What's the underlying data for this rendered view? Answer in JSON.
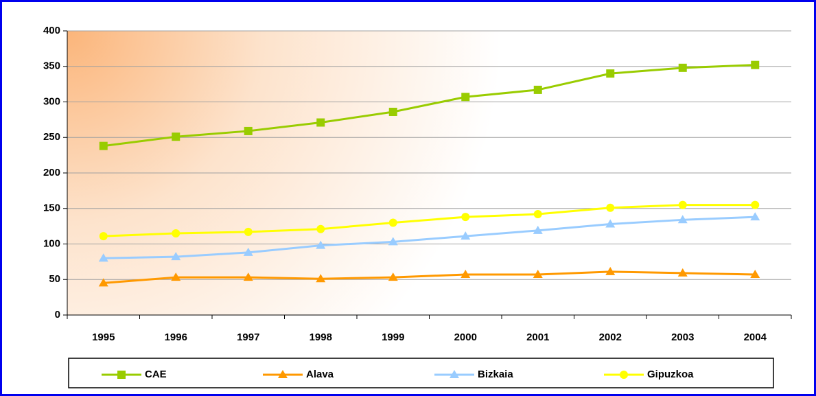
{
  "chart_data": {
    "type": "line",
    "categories": [
      "1995",
      "1996",
      "1997",
      "1998",
      "1999",
      "2000",
      "2001",
      "2002",
      "2003",
      "2004"
    ],
    "series": [
      {
        "name": "CAE",
        "color": "#99cc00",
        "marker": "square",
        "values": [
          238,
          251,
          259,
          271,
          286,
          307,
          317,
          340,
          348,
          352
        ]
      },
      {
        "name": "Alava",
        "color": "#ff9900",
        "marker": "triangle",
        "values": [
          45,
          53,
          53,
          51,
          53,
          57,
          57,
          61,
          59,
          57
        ]
      },
      {
        "name": "Bizkaia",
        "color": "#99ccff",
        "marker": "triangle",
        "values": [
          80,
          82,
          88,
          98,
          103,
          111,
          119,
          128,
          134,
          138
        ]
      },
      {
        "name": "Gipuzkoa",
        "color": "#ffff00",
        "marker": "circle",
        "values": [
          111,
          115,
          117,
          121,
          130,
          138,
          142,
          151,
          155,
          155
        ]
      }
    ],
    "ylim": [
      0,
      400
    ],
    "yticks": [
      0,
      50,
      100,
      150,
      200,
      250,
      300,
      350,
      400
    ],
    "grid": true,
    "legend": "bottom"
  }
}
